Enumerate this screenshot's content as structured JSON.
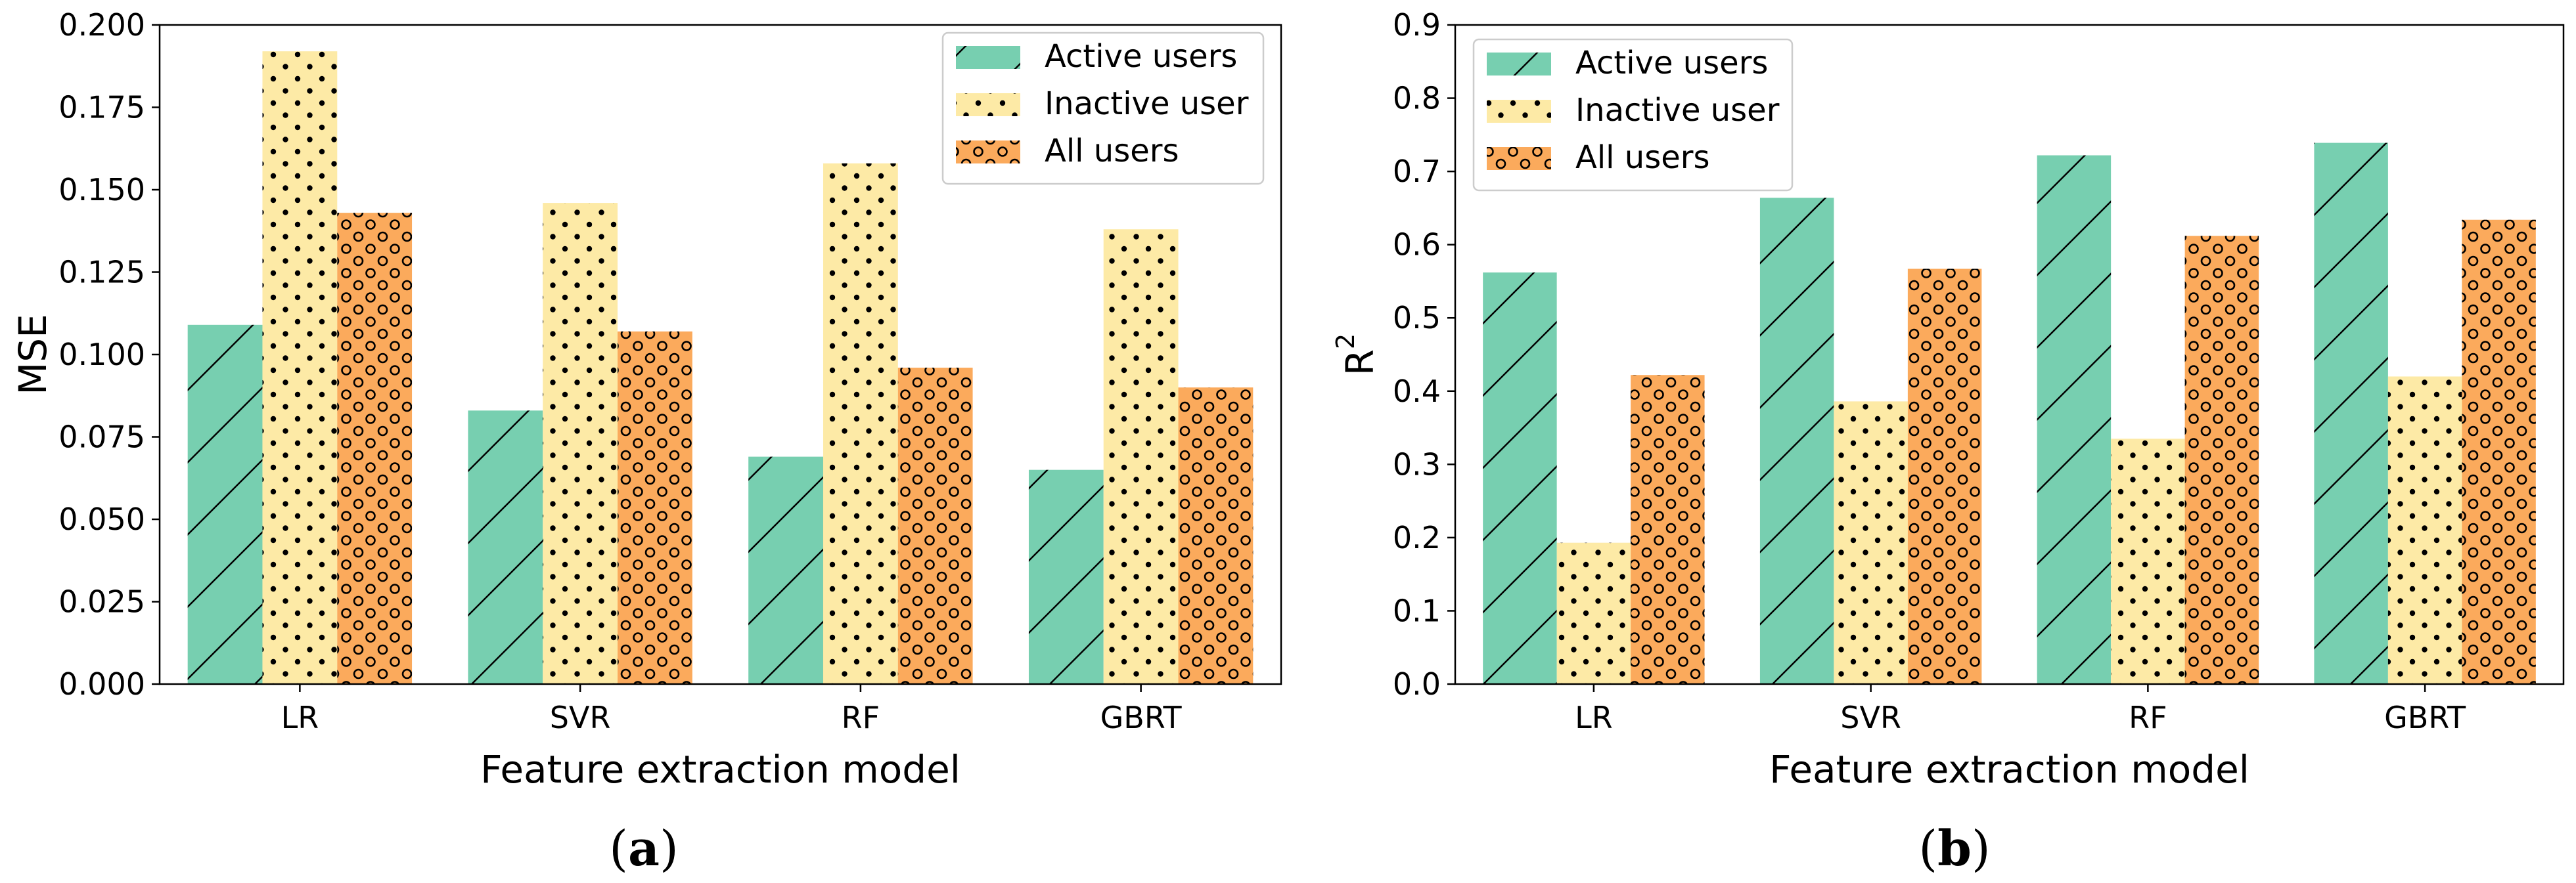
{
  "figure": {
    "colors": {
      "active": "#77cfb0",
      "inactive": "#fdeaa6",
      "all": "#fbaa5c"
    },
    "hatches": {
      "active": "diagonal-lines",
      "inactive": "dots",
      "all": "small-circles"
    }
  },
  "chart_data": [
    {
      "type": "bar",
      "panel_label": {
        "open": "(",
        "letter": "a",
        "close": ")"
      },
      "title": "",
      "xlabel": "Feature extraction model",
      "ylabel": "MSE",
      "ylim": [
        0,
        0.2
      ],
      "yticks": [
        "0.000",
        "0.025",
        "0.050",
        "0.075",
        "0.100",
        "0.125",
        "0.150",
        "0.175",
        "0.200"
      ],
      "categories": [
        "LR",
        "SVR",
        "RF",
        "GBRT"
      ],
      "legend_position": "top-right",
      "series": [
        {
          "name": "Active users",
          "key": "active",
          "values": [
            0.109,
            0.083,
            0.069,
            0.065
          ]
        },
        {
          "name": "Inactive user",
          "key": "inactive",
          "values": [
            0.192,
            0.146,
            0.158,
            0.138
          ]
        },
        {
          "name": "All users",
          "key": "all",
          "values": [
            0.143,
            0.107,
            0.096,
            0.09
          ]
        }
      ]
    },
    {
      "type": "bar",
      "panel_label": {
        "open": "(",
        "letter": "b",
        "close": ")"
      },
      "title": "",
      "xlabel": "Feature extraction model",
      "ylabel": "R",
      "ylabel_superscript": "2",
      "ylim": [
        0,
        0.9
      ],
      "yticks": [
        "0.0",
        "0.1",
        "0.2",
        "0.3",
        "0.4",
        "0.5",
        "0.6",
        "0.7",
        "0.8",
        "0.9"
      ],
      "categories": [
        "LR",
        "SVR",
        "RF",
        "GBRT"
      ],
      "legend_position": "top-left",
      "series": [
        {
          "name": "Active users",
          "key": "active",
          "values": [
            0.562,
            0.664,
            0.722,
            0.739
          ]
        },
        {
          "name": "Inactive user",
          "key": "inactive",
          "values": [
            0.193,
            0.386,
            0.335,
            0.42
          ]
        },
        {
          "name": "All users",
          "key": "all",
          "values": [
            0.422,
            0.567,
            0.612,
            0.634
          ]
        }
      ]
    }
  ]
}
